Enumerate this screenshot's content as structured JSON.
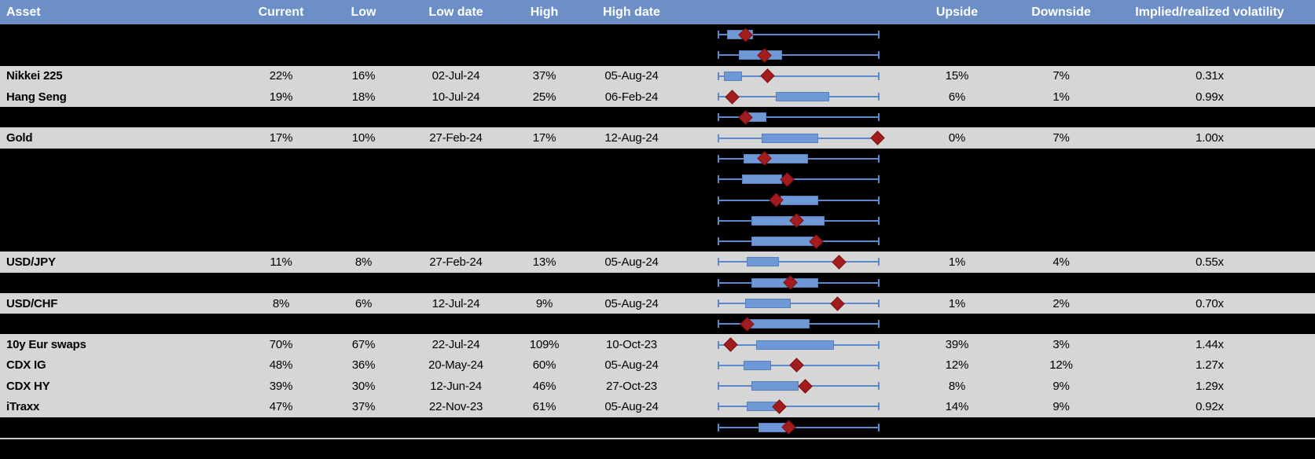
{
  "header": {
    "cols": [
      "Asset",
      "Current",
      "Low",
      "Low date",
      "High",
      "High date",
      "Upside",
      "Downside",
      "Implied/realized volatility"
    ]
  },
  "colors": {
    "page_bg": "#000000",
    "header_bg": "#6b8fc6",
    "header_text": "#ffffff",
    "row_bg": "#d6d6d6",
    "hidden_row_bg": "#000000",
    "whisker": "#5d89cb",
    "box_fill": "#6f99d6",
    "box_border": "#5880b8",
    "marker_fill": "#a21c1e",
    "marker_border": "#7e1113",
    "separator_line": "#c8c8c8"
  },
  "chart_data": {
    "type": "table",
    "description": "Implied volatility monitor: per-asset box-whisker range plots. Whisker spans the low-high range (0=low, 1=high); box and marker positions are fractions of that span; red diamond marker = current implied volatility.",
    "columns": [
      "Asset",
      "Current",
      "Low",
      "Low date",
      "High",
      "High date",
      "Range plot",
      "Upside",
      "Downside",
      "Implied/realized volatility"
    ],
    "rows": [
      {
        "hidden": true,
        "chart": {
          "box": [
            0.06,
            0.21
          ],
          "marker": 0.17
        }
      },
      {
        "hidden": true,
        "chart": {
          "box": [
            0.13,
            0.39
          ],
          "marker": 0.29
        }
      },
      {
        "hidden": false,
        "asset": "Nikkei 225",
        "current": "22%",
        "low": "16%",
        "low_date": "02-Jul-24",
        "high": "37%",
        "high_date": "05-Aug-24",
        "upside": "15%",
        "downside": "7%",
        "impl_real": "0.31x",
        "chart": {
          "box": [
            0.04,
            0.14
          ],
          "marker": 0.31
        }
      },
      {
        "hidden": false,
        "asset": "Hang Seng",
        "current": "19%",
        "low": "18%",
        "low_date": "10-Jul-24",
        "high": "25%",
        "high_date": "06-Feb-24",
        "upside": "6%",
        "downside": "1%",
        "impl_real": "0.99x",
        "chart": {
          "box": [
            0.36,
            0.68
          ],
          "marker": 0.09
        }
      },
      {
        "hidden": true,
        "chart": {
          "box": [
            0.18,
            0.29
          ],
          "marker": 0.17
        }
      },
      {
        "hidden": false,
        "asset": "Gold",
        "current": "17%",
        "low": "10%",
        "low_date": "27-Feb-24",
        "high": "17%",
        "high_date": "12-Aug-24",
        "upside": "0%",
        "downside": "7%",
        "impl_real": "1.00x",
        "chart": {
          "box": [
            0.27,
            0.61
          ],
          "marker": 0.99
        }
      },
      {
        "hidden": true,
        "chart": {
          "box": [
            0.16,
            0.55
          ],
          "marker": 0.29
        }
      },
      {
        "hidden": true,
        "chart": {
          "box": [
            0.15,
            0.39
          ],
          "marker": 0.43
        }
      },
      {
        "hidden": true,
        "chart": {
          "box": [
            0.39,
            0.61
          ],
          "marker": 0.36
        }
      },
      {
        "hidden": true,
        "chart": {
          "box": [
            0.21,
            0.65
          ],
          "marker": 0.49
        }
      },
      {
        "hidden": true,
        "chart": {
          "box": [
            0.21,
            0.6
          ],
          "marker": 0.61
        }
      },
      {
        "hidden": false,
        "asset": "USD/JPY",
        "current": "11%",
        "low": "8%",
        "low_date": "27-Feb-24",
        "high": "13%",
        "high_date": "05-Aug-24",
        "upside": "1%",
        "downside": "4%",
        "impl_real": "0.55x",
        "chart": {
          "box": [
            0.18,
            0.37
          ],
          "marker": 0.75
        }
      },
      {
        "hidden": true,
        "chart": {
          "box": [
            0.21,
            0.61
          ],
          "marker": 0.45
        }
      },
      {
        "hidden": false,
        "asset": "USD/CHF",
        "current": "8%",
        "low": "6%",
        "low_date": "12-Jul-24",
        "high": "9%",
        "high_date": "05-Aug-24",
        "upside": "1%",
        "downside": "2%",
        "impl_real": "0.70x",
        "chart": {
          "box": [
            0.17,
            0.44
          ],
          "marker": 0.74
        }
      },
      {
        "hidden": true,
        "chart": {
          "box": [
            0.19,
            0.56
          ],
          "marker": 0.18
        }
      },
      {
        "hidden": false,
        "asset": "10y Eur swaps",
        "current": "70%",
        "low": "67%",
        "low_date": "22-Jul-24",
        "high": "109%",
        "high_date": "10-Oct-23",
        "upside": "39%",
        "downside": "3%",
        "impl_real": "1.44x",
        "chart": {
          "box": [
            0.24,
            0.71
          ],
          "marker": 0.08
        }
      },
      {
        "hidden": false,
        "asset": "CDX IG",
        "current": "48%",
        "low": "36%",
        "low_date": "20-May-24",
        "high": "60%",
        "high_date": "05-Aug-24",
        "upside": "12%",
        "downside": "12%",
        "impl_real": "1.27x",
        "chart": {
          "box": [
            0.16,
            0.32
          ],
          "marker": 0.49
        }
      },
      {
        "hidden": false,
        "asset": "CDX HY",
        "current": "39%",
        "low": "30%",
        "low_date": "12-Jun-24",
        "high": "46%",
        "high_date": "27-Oct-23",
        "upside": "8%",
        "downside": "9%",
        "impl_real": "1.29x",
        "chart": {
          "box": [
            0.21,
            0.49
          ],
          "marker": 0.54
        }
      },
      {
        "hidden": false,
        "asset": "iTraxx",
        "current": "47%",
        "low": "37%",
        "low_date": "22-Nov-23",
        "high": "61%",
        "high_date": "05-Aug-24",
        "upside": "14%",
        "downside": "9%",
        "impl_real": "0.92x",
        "chart": {
          "box": [
            0.18,
            0.36
          ],
          "marker": 0.38
        }
      },
      {
        "hidden": true,
        "chart": {
          "box": [
            0.25,
            0.41
          ],
          "marker": 0.44
        }
      }
    ]
  }
}
